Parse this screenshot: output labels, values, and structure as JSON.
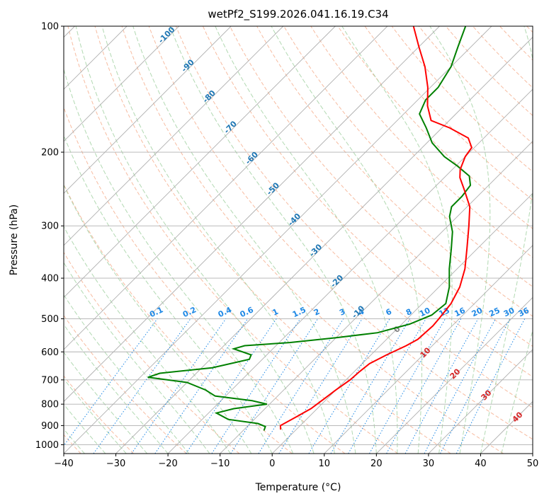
{
  "chart_data": {
    "type": "skew-t",
    "title": "wetPf2_S199.2026.041.16.19.C34",
    "xlabel": "Temperature (°C)",
    "ylabel": "Pressure (hPa)",
    "xlim": [
      -40,
      50
    ],
    "ylim_hpa": [
      1050,
      100
    ],
    "x_ticks": [
      "−40",
      "−30",
      "−20",
      "−10",
      "0",
      "10",
      "20",
      "30",
      "40",
      "50"
    ],
    "x_tick_values": [
      -40,
      -30,
      -20,
      -10,
      0,
      10,
      20,
      30,
      40,
      50
    ],
    "y_ticks": [
      "100",
      "200",
      "300",
      "400",
      "500",
      "600",
      "700",
      "800",
      "900",
      "1000"
    ],
    "y_tick_values": [
      100,
      200,
      300,
      400,
      500,
      600,
      700,
      800,
      900,
      1000
    ],
    "colors": {
      "temperature": "#ff0000",
      "dewpoint": "#008000",
      "isotherm": "#b0b0b0",
      "dry_adiabat": "#f4a582",
      "moist_adiabat": "#9fd09f",
      "mixing_ratio": "#1e88e5",
      "isotherm_label": "#1f77b4",
      "adiabat_label": "#d62728",
      "grid": "#b0b0b0"
    },
    "series": [
      {
        "name": "temperature",
        "points": [
          {
            "p": 920,
            "t": -3.0
          },
          {
            "p": 900,
            "t": -3.8
          },
          {
            "p": 860,
            "t": -2.5
          },
          {
            "p": 820,
            "t": -1.2
          },
          {
            "p": 780,
            "t": -0.6
          },
          {
            "p": 740,
            "t": 0.0
          },
          {
            "p": 700,
            "t": 0.8
          },
          {
            "p": 670,
            "t": 1.0
          },
          {
            "p": 640,
            "t": 1.4
          },
          {
            "p": 610,
            "t": 3.0
          },
          {
            "p": 580,
            "t": 5.0
          },
          {
            "p": 560,
            "t": 6.0
          },
          {
            "p": 520,
            "t": 6.3
          },
          {
            "p": 500,
            "t": 6.1
          },
          {
            "p": 460,
            "t": 5.5
          },
          {
            "p": 420,
            "t": 4.0
          },
          {
            "p": 380,
            "t": 1.5
          },
          {
            "p": 340,
            "t": -2.0
          },
          {
            "p": 300,
            "t": -6.0
          },
          {
            "p": 270,
            "t": -9.5
          },
          {
            "p": 245,
            "t": -14.0
          },
          {
            "p": 230,
            "t": -17.0
          },
          {
            "p": 220,
            "t": -18.5
          },
          {
            "p": 205,
            "t": -20.0
          },
          {
            "p": 195,
            "t": -20.5
          },
          {
            "p": 185,
            "t": -23.0
          },
          {
            "p": 175,
            "t": -28.5
          },
          {
            "p": 168,
            "t": -33.5
          },
          {
            "p": 155,
            "t": -37.0
          },
          {
            "p": 140,
            "t": -40.5
          },
          {
            "p": 125,
            "t": -45.0
          },
          {
            "p": 112,
            "t": -50.0
          },
          {
            "p": 100,
            "t": -55.0
          }
        ]
      },
      {
        "name": "dewpoint",
        "points": [
          {
            "p": 925,
            "t": -6.0
          },
          {
            "p": 905,
            "t": -6.5
          },
          {
            "p": 890,
            "t": -8.5
          },
          {
            "p": 870,
            "t": -15.0
          },
          {
            "p": 840,
            "t": -18.5
          },
          {
            "p": 820,
            "t": -16.0
          },
          {
            "p": 800,
            "t": -10.5
          },
          {
            "p": 785,
            "t": -14.0
          },
          {
            "p": 765,
            "t": -22.0
          },
          {
            "p": 740,
            "t": -25.0
          },
          {
            "p": 710,
            "t": -30.0
          },
          {
            "p": 690,
            "t": -38.5
          },
          {
            "p": 675,
            "t": -37.0
          },
          {
            "p": 655,
            "t": -28.0
          },
          {
            "p": 625,
            "t": -22.5
          },
          {
            "p": 610,
            "t": -23.0
          },
          {
            "p": 590,
            "t": -27.5
          },
          {
            "p": 580,
            "t": -26.0
          },
          {
            "p": 570,
            "t": -18.0
          },
          {
            "p": 555,
            "t": -10.0
          },
          {
            "p": 540,
            "t": -3.0
          },
          {
            "p": 515,
            "t": 1.5
          },
          {
            "p": 490,
            "t": 4.0
          },
          {
            "p": 460,
            "t": 4.5
          },
          {
            "p": 420,
            "t": 2.0
          },
          {
            "p": 380,
            "t": -1.5
          },
          {
            "p": 340,
            "t": -5.0
          },
          {
            "p": 310,
            "t": -8.0
          },
          {
            "p": 285,
            "t": -11.5
          },
          {
            "p": 270,
            "t": -13.0
          },
          {
            "p": 255,
            "t": -13.0
          },
          {
            "p": 240,
            "t": -13.5
          },
          {
            "p": 228,
            "t": -15.5
          },
          {
            "p": 215,
            "t": -20.0
          },
          {
            "p": 205,
            "t": -24.0
          },
          {
            "p": 190,
            "t": -29.0
          },
          {
            "p": 175,
            "t": -33.0
          },
          {
            "p": 162,
            "t": -37.0
          },
          {
            "p": 150,
            "t": -38.5
          },
          {
            "p": 140,
            "t": -38.5
          },
          {
            "p": 125,
            "t": -40.0
          },
          {
            "p": 112,
            "t": -42.5
          },
          {
            "p": 100,
            "t": -45.0
          }
        ]
      }
    ],
    "isotherm_labels": [
      {
        "text": "-100",
        "t": -100
      },
      {
        "text": "-90",
        "t": -90
      },
      {
        "text": "-80",
        "t": -80
      },
      {
        "text": "-70",
        "t": -70
      },
      {
        "text": "-60",
        "t": -60
      },
      {
        "text": "-50",
        "t": -50
      },
      {
        "text": "-40",
        "t": -40
      },
      {
        "text": "-30",
        "t": -30
      },
      {
        "text": "-20",
        "t": -20
      },
      {
        "text": "-10",
        "t": -10
      }
    ],
    "mixing_ratio_labels": [
      "0.1",
      "0.2",
      "0.4",
      "0.6",
      "1",
      "1.5",
      "2",
      "3",
      "4",
      "6",
      "8",
      "10",
      "13",
      "16",
      "20",
      "25",
      "30",
      "36"
    ],
    "mixing_ratio_values": [
      0.1,
      0.2,
      0.4,
      0.6,
      1,
      1.5,
      2,
      3,
      4,
      6,
      8,
      10,
      13,
      16,
      20,
      25,
      30,
      36
    ],
    "adiabat_labels": [
      {
        "text": "0",
        "color": "#808080"
      },
      {
        "text": "10",
        "color": "#d62728"
      },
      {
        "text": "20",
        "color": "#d62728"
      },
      {
        "text": "30",
        "color": "#d62728"
      },
      {
        "text": "40",
        "color": "#d62728"
      }
    ],
    "grid": true
  }
}
